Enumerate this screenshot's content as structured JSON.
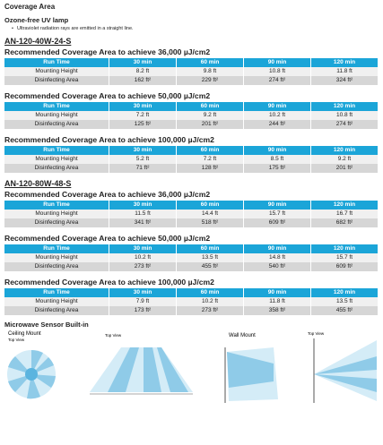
{
  "heading": "Coverage Area",
  "lamp": {
    "title": "Ozone-free UV lamp",
    "bullet": "Ultraviolet radiation rays are emitted in a straight line."
  },
  "products": [
    {
      "name": "AN-120-40W-24-S",
      "tables": [
        {
          "title": "Recommended Coverage Area to achieve 36,000 µJ/cm2",
          "rows": [
            [
              "Run Time",
              "30 min",
              "60 min",
              "90 min",
              "120 min"
            ],
            [
              "Mounting Height",
              "8.2 ft",
              "9.8 ft",
              "10.8 ft",
              "11.8 ft"
            ],
            [
              "Disinfecting Area",
              "162 ft²",
              "229 ft²",
              "274 ft²",
              "324 ft²"
            ]
          ]
        },
        {
          "title": "Recommended Coverage Area to achieve 50,000 µJ/cm2",
          "rows": [
            [
              "Run Time",
              "30 min",
              "60 min",
              "90 min",
              "120 min"
            ],
            [
              "Mounting Height",
              "7.2 ft",
              "9.2 ft",
              "10.2 ft",
              "10.8 ft"
            ],
            [
              "Disinfecting Area",
              "125 ft²",
              "201 ft²",
              "244 ft²",
              "274 ft²"
            ]
          ]
        },
        {
          "title": "Recommended Coverage Area to achieve 100,000 µJ/cm2",
          "rows": [
            [
              "Run Time",
              "30 min",
              "60 min",
              "90 min",
              "120 min"
            ],
            [
              "Mounting Height",
              "5.2 ft",
              "7.2 ft",
              "8.5 ft",
              "9.2 ft"
            ],
            [
              "Disinfecting Area",
              "71 ft²",
              "128 ft²",
              "175 ft²",
              "201 ft²"
            ]
          ]
        }
      ]
    },
    {
      "name": "AN-120-80W-48-S",
      "tables": [
        {
          "title": "Recommended Coverage Area to achieve 36,000 µJ/cm2",
          "rows": [
            [
              "Run Time",
              "30 min",
              "60 min",
              "90 min",
              "120 min"
            ],
            [
              "Mounting Height",
              "11.5 ft",
              "14.4 ft",
              "15.7 ft",
              "16.7 ft"
            ],
            [
              "Disinfecting Area",
              "341 ft²",
              "518 ft²",
              "609 ft²",
              "682 ft²"
            ]
          ]
        },
        {
          "title": "Recommended Coverage Area to achieve 50,000 µJ/cm2",
          "rows": [
            [
              "Run Time",
              "30 min",
              "60 min",
              "90 min",
              "120 min"
            ],
            [
              "Mounting Height",
              "10.2 ft",
              "13.5 ft",
              "14.8 ft",
              "15.7 ft"
            ],
            [
              "Disinfecting Area",
              "273 ft²",
              "455 ft²",
              "540 ft²",
              "609 ft²"
            ]
          ]
        },
        {
          "title": "Recommended Coverage Area to achieve 100,000 µJ/cm2",
          "rows": [
            [
              "Run Time",
              "30 min",
              "60 min",
              "90 min",
              "120 min"
            ],
            [
              "Mounting Height",
              "7.9 ft",
              "10.2 ft",
              "11.8 ft",
              "13.5 ft"
            ],
            [
              "Disinfecting Area",
              "173 ft²",
              "273 ft²",
              "358 ft²",
              "455 ft²"
            ]
          ]
        }
      ]
    }
  ],
  "sensor": {
    "title": "Microwave Sensor Built-in",
    "diagrams": [
      "Ceiling Mount",
      "Top View",
      "Top View",
      "Wall Mount",
      "Top View"
    ]
  }
}
